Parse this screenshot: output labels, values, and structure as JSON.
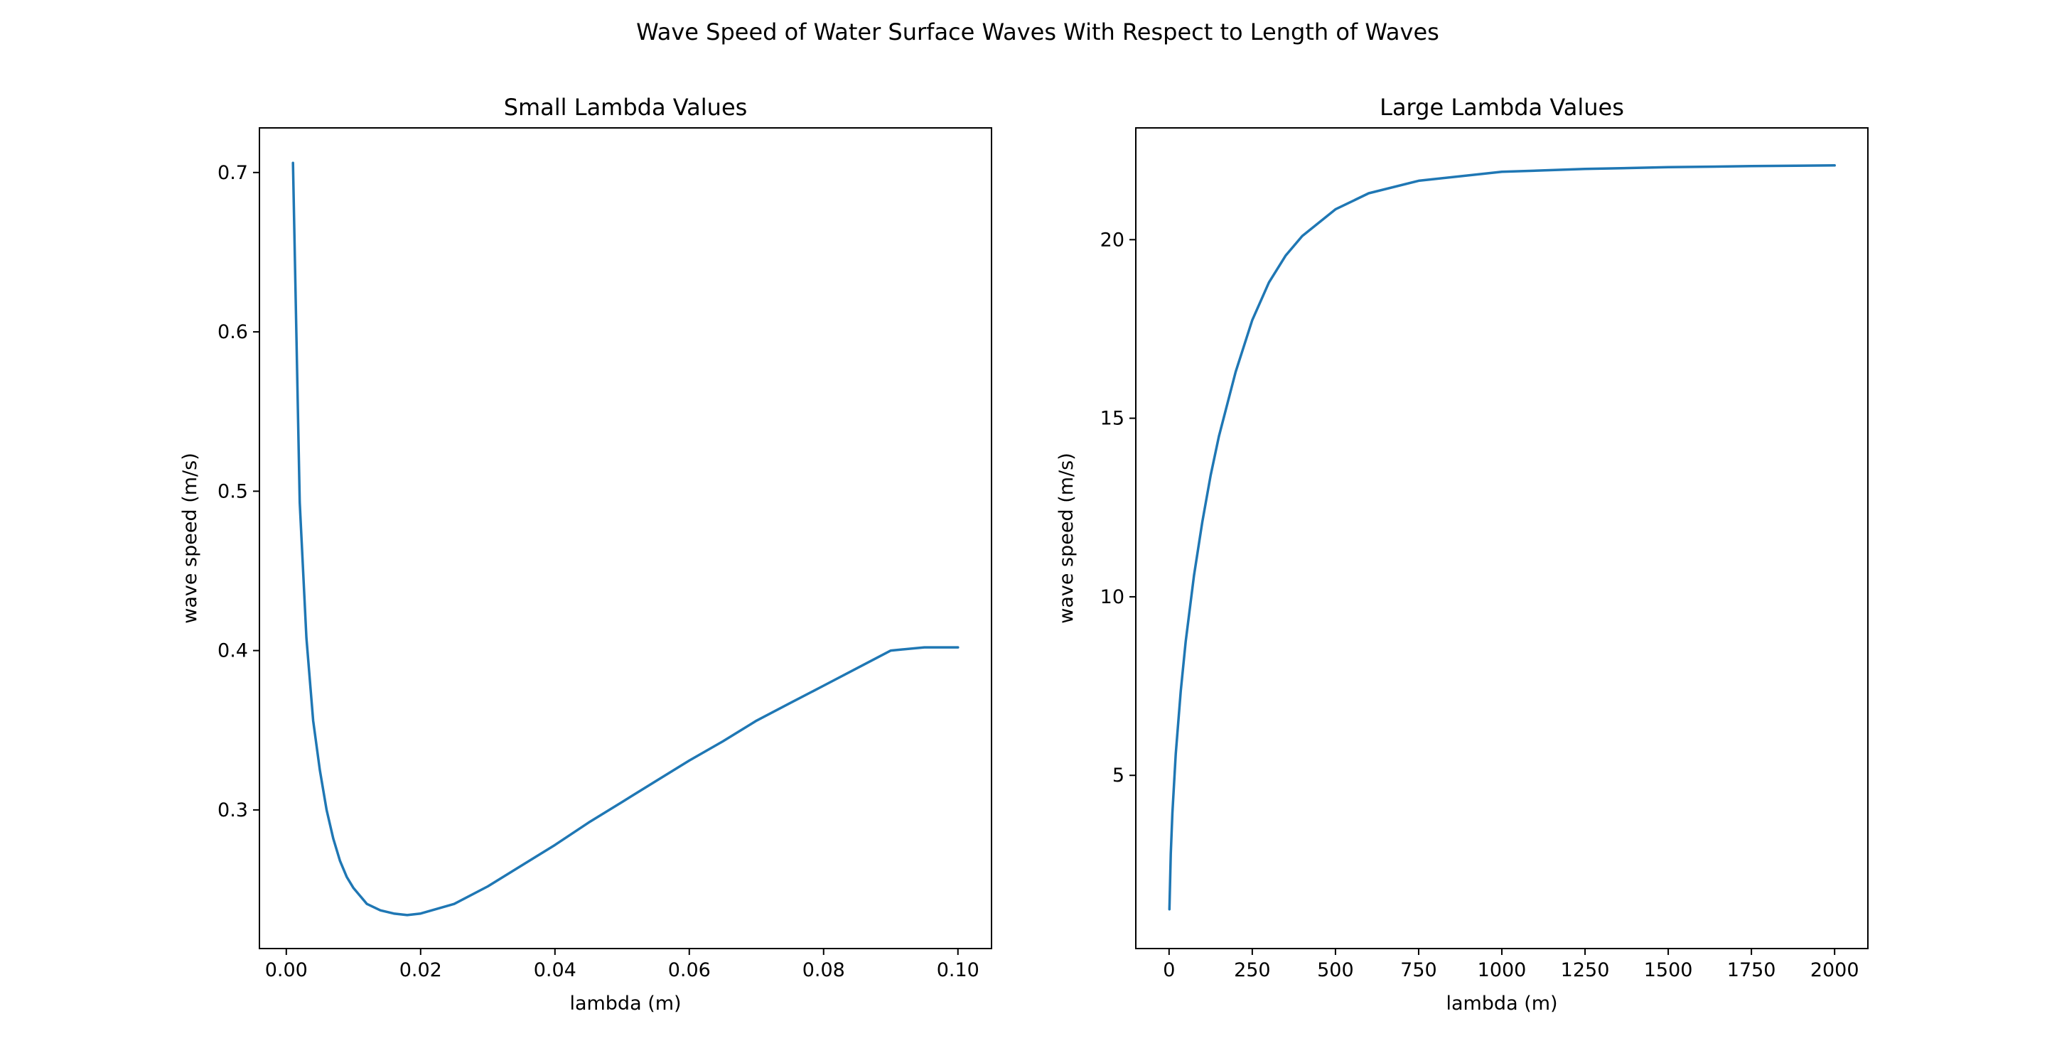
{
  "figure": {
    "title": "Wave Speed of Water Surface Waves With Respect to Length of Waves"
  },
  "chart_data": [
    {
      "type": "line",
      "title": "Small Lambda Values",
      "xlabel": "lambda (m)",
      "ylabel": "wave speed (m/s)",
      "xlim": [
        -0.004,
        0.105
      ],
      "ylim": [
        0.213,
        0.728
      ],
      "xticks": [
        0.0,
        0.02,
        0.04,
        0.06,
        0.08,
        0.1
      ],
      "xtick_labels": [
        "0.00",
        "0.02",
        "0.04",
        "0.06",
        "0.08",
        "0.10"
      ],
      "yticks": [
        0.3,
        0.4,
        0.5,
        0.6,
        0.7
      ],
      "ytick_labels": [
        "0.3",
        "0.4",
        "0.5",
        "0.6",
        "0.7"
      ],
      "grid": false,
      "color": "#1f77b4",
      "series": [
        {
          "x": [
            0.001,
            0.002,
            0.003,
            0.004,
            0.005,
            0.006,
            0.007,
            0.008,
            0.009,
            0.01,
            0.012,
            0.014,
            0.016,
            0.018,
            0.02,
            0.025,
            0.03,
            0.035,
            0.04,
            0.045,
            0.05,
            0.055,
            0.06,
            0.065,
            0.07,
            0.075,
            0.08,
            0.085,
            0.09,
            0.095,
            0.1
          ],
          "y": [
            0.706,
            0.493,
            0.408,
            0.356,
            0.325,
            0.3,
            0.282,
            0.268,
            0.258,
            0.251,
            0.241,
            0.237,
            0.235,
            0.234,
            0.235,
            0.241,
            0.252,
            0.265,
            0.278,
            0.292,
            0.305,
            0.318,
            0.331,
            0.343,
            0.356,
            0.367,
            0.378,
            0.389,
            0.4,
            0.402,
            0.402
          ]
        }
      ]
    },
    {
      "type": "line",
      "title": "Large Lambda Values",
      "xlabel": "lambda (m)",
      "ylabel": "wave speed (m/s)",
      "xlim": [
        -100,
        2100
      ],
      "ylim": [
        0.15,
        23.13
      ],
      "xticks": [
        0,
        250,
        500,
        750,
        1000,
        1250,
        1500,
        1750,
        2000
      ],
      "xtick_labels": [
        "0",
        "250",
        "500",
        "750",
        "1000",
        "1250",
        "1500",
        "1750",
        "2000"
      ],
      "yticks": [
        5,
        10,
        15,
        20
      ],
      "ytick_labels": [
        "5",
        "10",
        "15",
        "20"
      ],
      "grid": false,
      "color": "#1f77b4",
      "series": [
        {
          "x": [
            1,
            5,
            10,
            20,
            35,
            50,
            75,
            100,
            125,
            150,
            200,
            250,
            300,
            350,
            400,
            500,
            600,
            750,
            1000,
            1250,
            1500,
            1750,
            2000
          ],
          "y": [
            1.25,
            2.8,
            3.95,
            5.6,
            7.35,
            8.75,
            10.6,
            12.1,
            13.4,
            14.5,
            16.3,
            17.75,
            18.8,
            19.55,
            20.1,
            20.85,
            21.3,
            21.65,
            21.9,
            21.98,
            22.03,
            22.06,
            22.08
          ]
        }
      ]
    }
  ]
}
